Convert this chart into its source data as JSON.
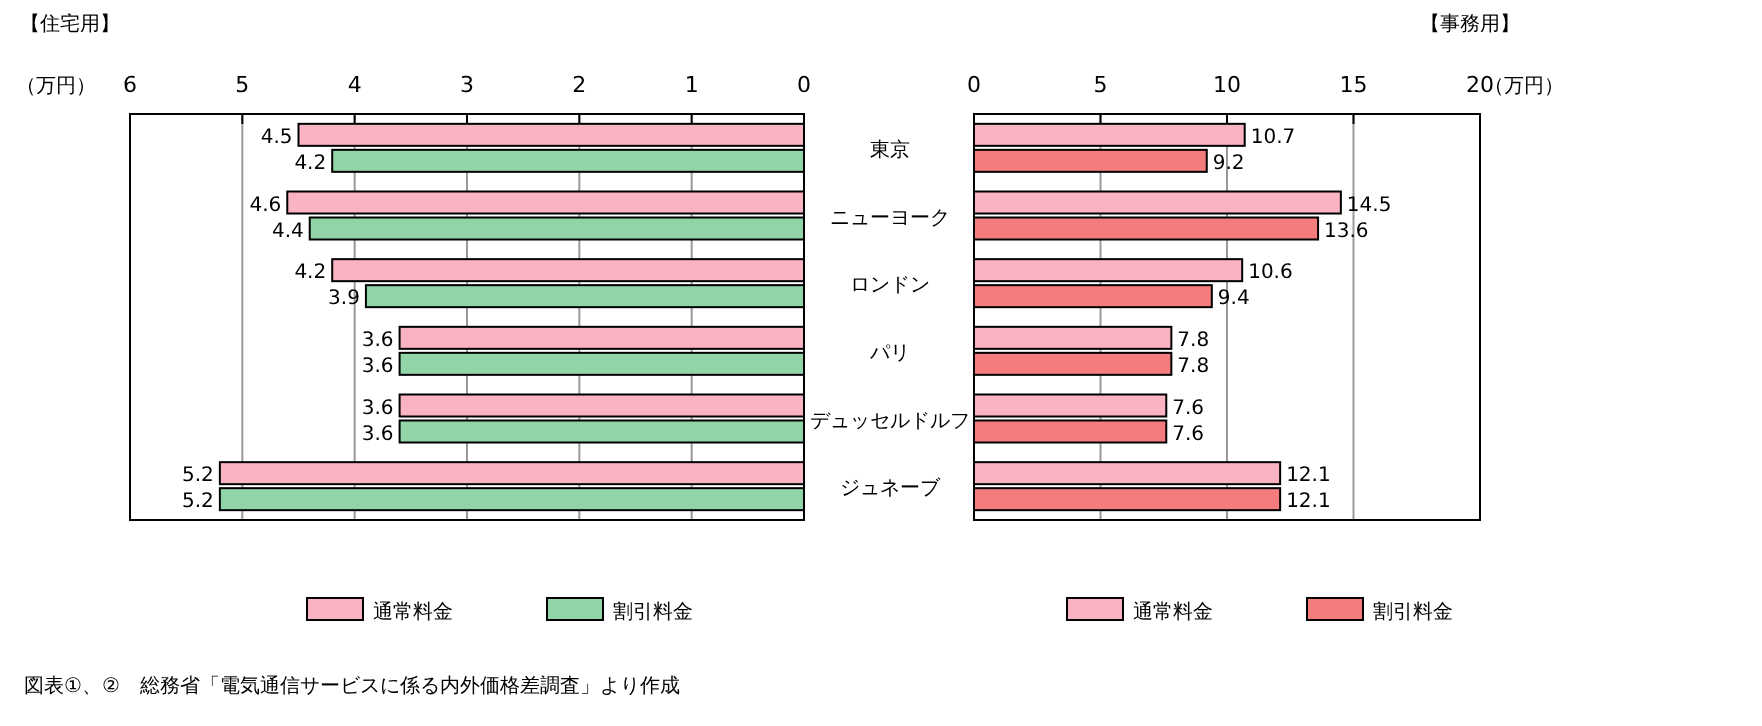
{
  "chart_data": [
    {
      "type": "bar",
      "orientation": "horizontal",
      "title": "【住宅用】",
      "xlabel": "（万円）",
      "categories": [
        "東京",
        "ニューヨーク",
        "ロンドン",
        "パリ",
        "デュッセルドルフ",
        "ジュネーブ"
      ],
      "series": [
        {
          "name": "通常料金",
          "color": "#f9b3c2",
          "values": [
            4.5,
            4.6,
            4.2,
            3.6,
            3.6,
            5.2
          ]
        },
        {
          "name": "割引料金",
          "color": "#90d4a8",
          "values": [
            4.2,
            4.4,
            3.9,
            3.6,
            3.6,
            5.2
          ]
        }
      ],
      "xlim": [
        6,
        0
      ],
      "xticks": [
        6,
        5,
        4,
        3,
        2,
        1,
        0
      ],
      "grid": "x",
      "legend": "bottom",
      "data_labels": true,
      "annotations": [
        "図表①、②　総務省「電気通信サービスに係る内外価格差調査」より作成"
      ]
    },
    {
      "type": "bar",
      "orientation": "horizontal",
      "title": "【事務用】",
      "xlabel": "（万円）",
      "categories": [
        null,
        null,
        null,
        null,
        null,
        null
      ],
      "series": [
        {
          "name": "通常料金",
          "color": "#f9b3c2",
          "values": [
            10.7,
            14.5,
            10.6,
            7.8,
            7.6,
            12.1
          ]
        },
        {
          "name": "割引料金",
          "color": "#f47c7c",
          "values": [
            9.2,
            13.6,
            9.4,
            7.8,
            7.6,
            12.1
          ]
        }
      ],
      "xlim": [
        0,
        20
      ],
      "xticks": [
        0,
        5,
        10,
        15,
        20
      ],
      "grid": "x",
      "legend": "bottom",
      "data_labels": true,
      "tick_labels": "x"
    }
  ]
}
